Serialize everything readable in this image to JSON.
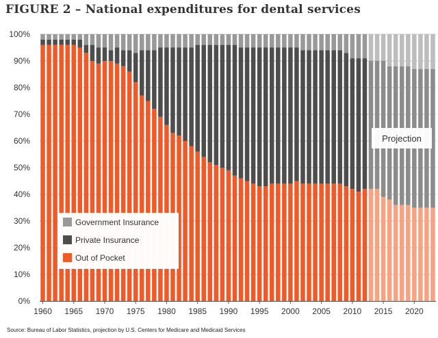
{
  "title": "FIGURE 2 – National expenditures for dental services",
  "source": "Source: Bureau of Labor Statistics, projection by U.S. Centers for Medicare and Medicaid Services",
  "colors": {
    "government": "#999999",
    "private": "#4d4d4d",
    "out_of_pocket": "#f05a28",
    "government_projection": "#bdbdbd",
    "private_projection": "#8c8c8c",
    "out_of_pocket_projection": "#f7a381",
    "grid": "#c8c8c8"
  },
  "chart_data": {
    "type": "bar",
    "stacked": true,
    "normalized": true,
    "title": "FIGURE 2 – National expenditures for dental services",
    "xlabel": "",
    "ylabel": "",
    "ylim": [
      0,
      100
    ],
    "yticks": [
      "0%",
      "10%",
      "20%",
      "30%",
      "40%",
      "50%",
      "60%",
      "70%",
      "80%",
      "90%",
      "100%"
    ],
    "xticks": [
      1960,
      1965,
      1970,
      1975,
      1980,
      1985,
      1990,
      1995,
      2000,
      2005,
      2010,
      2015,
      2020
    ],
    "annotation": "Projection",
    "projection_start": 2013,
    "legend_position": "bottom-left",
    "categories": [
      1960,
      1961,
      1962,
      1963,
      1964,
      1965,
      1966,
      1967,
      1968,
      1969,
      1970,
      1971,
      1972,
      1973,
      1974,
      1975,
      1976,
      1977,
      1978,
      1979,
      1980,
      1981,
      1982,
      1983,
      1984,
      1985,
      1986,
      1987,
      1988,
      1989,
      1990,
      1991,
      1992,
      1993,
      1994,
      1995,
      1996,
      1997,
      1998,
      1999,
      2000,
      2001,
      2002,
      2003,
      2004,
      2005,
      2006,
      2007,
      2008,
      2009,
      2010,
      2011,
      2012,
      2013,
      2014,
      2015,
      2016,
      2017,
      2018,
      2019,
      2020,
      2021,
      2022,
      2023
    ],
    "series": [
      {
        "name": "Out of Pocket",
        "values": [
          96,
          96,
          96,
          96,
          96,
          96,
          95,
          93,
          90,
          89,
          90,
          90,
          89,
          88,
          86,
          82,
          77,
          75,
          72,
          69,
          66,
          63,
          62,
          60,
          58,
          56,
          54,
          52,
          51,
          50,
          49,
          47,
          46,
          45,
          44,
          43,
          43,
          44,
          44,
          44,
          44,
          45,
          44,
          44,
          44,
          44,
          44,
          44,
          44,
          43,
          42,
          41,
          42,
          42,
          42,
          39,
          38,
          36,
          36,
          36,
          35,
          35,
          35,
          35
        ]
      },
      {
        "name": "Private Insurance",
        "values": [
          2,
          2,
          2,
          2,
          2,
          2,
          3,
          3,
          6,
          6,
          5,
          4,
          6,
          6,
          8,
          11,
          17,
          19,
          22,
          26,
          29,
          32,
          33,
          35,
          37,
          40,
          42,
          44,
          45,
          46,
          47,
          49,
          49,
          50,
          51,
          52,
          52,
          51,
          51,
          51,
          51,
          50,
          50,
          50,
          50,
          50,
          50,
          50,
          50,
          50,
          49,
          50,
          49,
          48,
          48,
          51,
          50,
          52,
          52,
          52,
          52,
          52,
          52,
          52
        ]
      },
      {
        "name": "Government Insurance",
        "values": [
          2,
          2,
          2,
          2,
          2,
          2,
          2,
          4,
          4,
          5,
          5,
          6,
          5,
          6,
          6,
          7,
          6,
          6,
          6,
          5,
          5,
          5,
          5,
          5,
          5,
          4,
          4,
          4,
          4,
          4,
          4,
          4,
          5,
          5,
          5,
          5,
          5,
          5,
          5,
          5,
          5,
          5,
          6,
          6,
          6,
          6,
          6,
          6,
          6,
          7,
          9,
          9,
          9,
          10,
          10,
          10,
          12,
          12,
          12,
          12,
          13,
          13,
          13,
          13
        ]
      }
    ]
  }
}
